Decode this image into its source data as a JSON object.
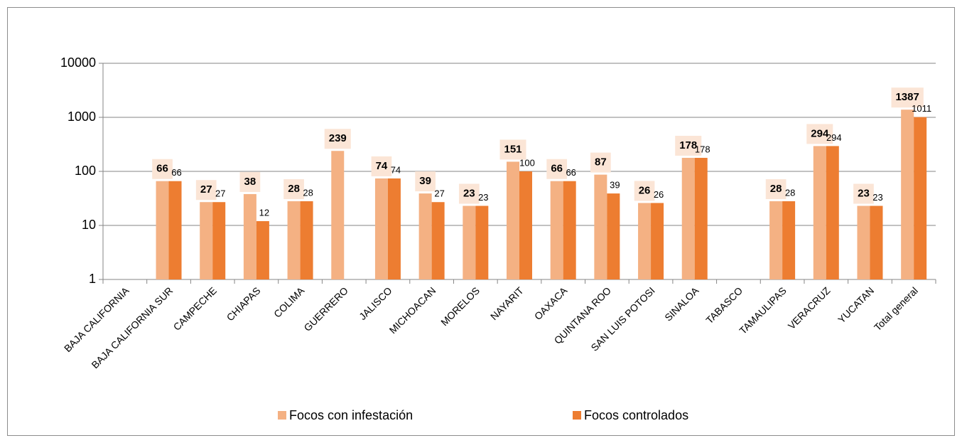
{
  "chart_data": {
    "type": "bar",
    "log_scale": true,
    "grid": true,
    "legend": "bottom",
    "categories": [
      "BAJA CALIFORNIA",
      "BAJA CALIFORNIA SUR",
      "CAMPECHE",
      "CHIAPAS",
      "COLIMA",
      "GUERRERO",
      "JALISCO",
      "MICHOACAN",
      "MORELOS",
      "NAYARIT",
      "OAXACA",
      "QUINTANA ROO",
      "SAN LUIS POTOSI",
      "SINALOA",
      "TABASCO",
      "TAMAULIPAS",
      "VERACRUZ",
      "YUCATAN",
      "Total general"
    ],
    "series": [
      {
        "name": "Focos con infestación",
        "color": "#f4b183",
        "values": [
          null,
          66,
          27,
          38,
          28,
          239,
          74,
          39,
          23,
          151,
          66,
          87,
          26,
          178,
          null,
          28,
          294,
          23,
          1387
        ]
      },
      {
        "name": "Focos controlados",
        "color": "#ed7d31",
        "values": [
          null,
          66,
          27,
          12,
          28,
          null,
          74,
          27,
          23,
          100,
          66,
          39,
          26,
          178,
          null,
          28,
          294,
          23,
          1011
        ]
      }
    ],
    "ylim": [
      1,
      10000
    ],
    "yticks": [
      1,
      10,
      100,
      1000,
      10000
    ]
  }
}
